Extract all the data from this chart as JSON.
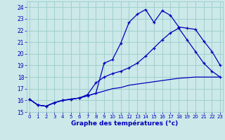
{
  "title": "Graphe des températures (°c)",
  "bg_color": "#cce8e8",
  "grid_color": "#99cccc",
  "line_color": "#0000bb",
  "x_labels": [
    "0",
    "1",
    "2",
    "3",
    "4",
    "5",
    "6",
    "7",
    "8",
    "9",
    "10",
    "11",
    "12",
    "13",
    "14",
    "15",
    "16",
    "17",
    "18",
    "19",
    "20",
    "21",
    "22",
    "23"
  ],
  "ylim": [
    15,
    24.5
  ],
  "yticks": [
    15,
    16,
    17,
    18,
    19,
    20,
    21,
    22,
    23,
    24
  ],
  "line1_x": [
    0,
    1,
    2,
    3,
    4,
    5,
    6,
    7,
    8,
    9,
    10,
    11,
    12,
    13,
    14,
    15,
    16,
    17,
    18,
    19,
    20,
    21,
    22,
    23
  ],
  "line1": [
    16.1,
    15.6,
    15.5,
    15.8,
    16.0,
    16.1,
    16.2,
    16.4,
    16.6,
    19.2,
    19.5,
    20.9,
    22.7,
    23.4,
    23.8,
    22.7,
    23.7,
    23.3,
    22.3,
    22.2,
    22.1,
    21.1,
    20.2,
    19.0
  ],
  "line2_x": [
    0,
    1,
    2,
    3,
    4,
    5,
    6,
    7,
    8,
    9,
    10,
    11,
    12,
    13,
    14,
    15,
    16,
    17,
    18,
    19,
    20,
    21,
    22,
    23
  ],
  "line2": [
    16.1,
    15.6,
    15.5,
    15.8,
    16.0,
    16.1,
    16.2,
    16.5,
    17.5,
    18.0,
    18.3,
    18.5,
    18.8,
    19.2,
    19.8,
    20.5,
    21.2,
    21.8,
    22.2,
    21.2,
    20.2,
    19.2,
    18.5,
    18.0
  ],
  "line3_x": [
    0,
    1,
    2,
    3,
    4,
    5,
    6,
    7,
    8,
    9,
    10,
    11,
    12,
    13,
    14,
    15,
    16,
    17,
    18,
    19,
    20,
    21,
    22,
    23
  ],
  "line3": [
    16.1,
    15.6,
    15.5,
    15.8,
    16.0,
    16.1,
    16.2,
    16.4,
    16.6,
    16.8,
    17.0,
    17.1,
    17.3,
    17.4,
    17.5,
    17.6,
    17.7,
    17.8,
    17.9,
    17.95,
    18.0,
    18.0,
    18.0,
    18.0
  ]
}
